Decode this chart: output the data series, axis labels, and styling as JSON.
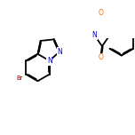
{
  "bg_color": "#ffffff",
  "bond_color": "#000000",
  "n_color": "#0000cc",
  "o_color": "#ff6600",
  "br_color": "#8B0000",
  "lw": 1.3,
  "dbo": 0.055,
  "figsize": [
    1.52,
    1.52
  ],
  "dpi": 100,
  "xlim": [
    -2.8,
    7.2
  ],
  "ylim": [
    -2.2,
    2.2
  ]
}
